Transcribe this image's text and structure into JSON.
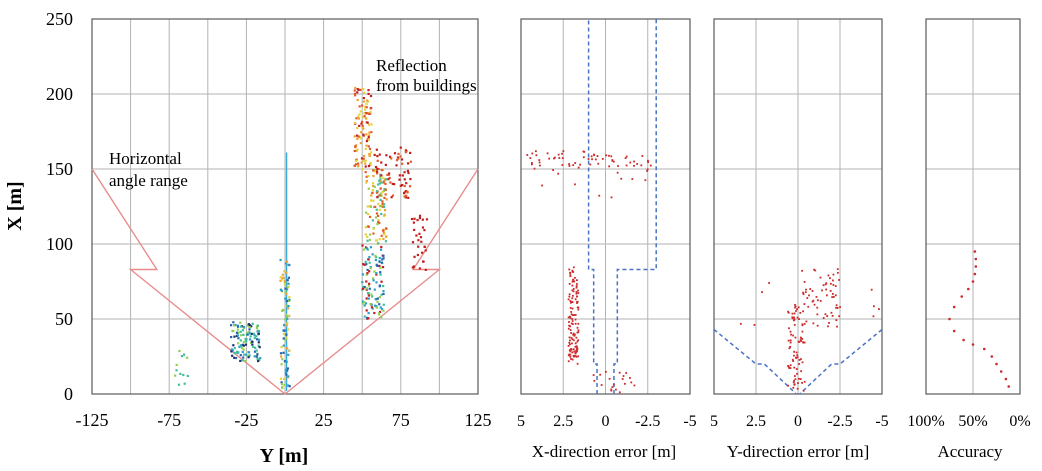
{
  "chart_data": [
    {
      "type": "scatter",
      "ylabel": "X [m]",
      "xlabel": "Y [m]",
      "xlim": [
        -125,
        125
      ],
      "ylim": [
        0,
        250
      ],
      "x_ticks": [
        "-125",
        "-75",
        "-25",
        "25",
        "75",
        "125"
      ],
      "x_grid": [
        -125,
        -100,
        -75,
        -50,
        -25,
        0,
        25,
        50,
        75,
        100,
        125
      ],
      "y_ticks": [
        "0",
        "50",
        "100",
        "150",
        "200",
        "250"
      ],
      "grid": true,
      "annotations": [
        {
          "text": [
            "Reflection",
            "from buildings"
          ],
          "x": 53,
          "y": 212
        },
        {
          "text": [
            "Horizontal",
            "angle range"
          ],
          "x": -118,
          "y": 150
        }
      ],
      "angle_range_line": {
        "color": "#e88d8d",
        "points": [
          [
            -125,
            150
          ],
          [
            -83,
            83
          ],
          [
            -100,
            83
          ],
          [
            0,
            0
          ],
          [
            100,
            83
          ],
          [
            83,
            83
          ],
          [
            125,
            150
          ]
        ]
      },
      "vertical_line": {
        "color": "#3aa8d8",
        "x": 1,
        "y": [
          2,
          161
        ]
      },
      "point_colors": [
        "#1a2f6e",
        "#2464b0",
        "#2aa0c8",
        "#3fbf9a",
        "#8fd14f",
        "#e6d23a",
        "#f0a030",
        "#e35a2a",
        "#c41d1d"
      ],
      "clusters": [
        {
          "x": [
            -35,
            -16
          ],
          "y": [
            22,
            48
          ],
          "n": 120,
          "colors": [
            0,
            1,
            2,
            3,
            4
          ]
        },
        {
          "x": [
            -3,
            3
          ],
          "y": [
            2,
            90
          ],
          "n": 90,
          "colors": [
            1,
            2,
            4,
            5,
            6
          ]
        },
        {
          "x": [
            45,
            56
          ],
          "y": [
            150,
            205
          ],
          "n": 110,
          "colors": [
            5,
            6,
            7,
            8
          ]
        },
        {
          "x": [
            52,
            66
          ],
          "y": [
            100,
            150
          ],
          "n": 110,
          "colors": [
            3,
            4,
            5,
            6,
            7
          ]
        },
        {
          "x": [
            50,
            64
          ],
          "y": [
            50,
            100
          ],
          "n": 110,
          "colors": [
            1,
            2,
            3,
            4,
            8
          ]
        },
        {
          "x": [
            57,
            82
          ],
          "y": [
            130,
            165
          ],
          "n": 70,
          "colors": [
            7,
            8
          ]
        },
        {
          "x": [
            82,
            92
          ],
          "y": [
            75,
            120
          ],
          "n": 30,
          "colors": [
            8
          ]
        },
        {
          "x": [
            -75,
            -62
          ],
          "y": [
            5,
            30
          ],
          "n": 12,
          "colors": [
            3,
            4
          ]
        }
      ]
    },
    {
      "type": "scatter",
      "xlabel": "X-direction error [m]",
      "xlim": [
        5,
        -5
      ],
      "ylim": [
        0,
        250
      ],
      "x_ticks": [
        "5",
        "2.5",
        "0",
        "-2.5",
        "-5"
      ],
      "grid": true,
      "point_color": "#cc2a2a",
      "bounds_color": "#4a73c4",
      "bounds": [
        [
          [
            -0.5,
            0
          ],
          [
            -0.5,
            20
          ],
          [
            -0.7,
            20
          ],
          [
            -0.7,
            83
          ],
          [
            -3,
            83
          ],
          [
            -3,
            250
          ]
        ],
        [
          [
            0.5,
            0
          ],
          [
            0.5,
            20
          ],
          [
            0.7,
            20
          ],
          [
            0.7,
            83
          ],
          [
            1,
            83
          ],
          [
            1,
            250
          ]
        ]
      ],
      "clusters": [
        {
          "x": [
            1.6,
            2.2
          ],
          "y": [
            20,
            85
          ],
          "n": 120
        },
        {
          "x": [
            4.7,
            -2.7
          ],
          "y": [
            150,
            162
          ],
          "n": 60
        },
        {
          "x": [
            4,
            -3
          ],
          "y": [
            130,
            150
          ],
          "n": 12
        },
        {
          "x": [
            0.8,
            -1.8
          ],
          "y": [
            0,
            15
          ],
          "n": 20
        }
      ]
    },
    {
      "type": "scatter",
      "xlabel": "Y-direction error [m]",
      "xlim": [
        5,
        -5
      ],
      "ylim": [
        0,
        250
      ],
      "x_ticks": [
        "5",
        "2.5",
        "0",
        "-2.5",
        "-5"
      ],
      "grid": true,
      "point_color": "#cc2a2a",
      "bounds_color": "#4a73c4",
      "bounds": [
        [
          [
            5,
            43
          ],
          [
            2.5,
            20
          ],
          [
            2,
            20
          ],
          [
            0.1,
            0
          ]
        ],
        [
          [
            -5,
            43
          ],
          [
            -2.5,
            20
          ],
          [
            -2,
            20
          ],
          [
            -0.1,
            0
          ]
        ]
      ],
      "clusters": [
        {
          "x": [
            0.6,
            -0.4
          ],
          "y": [
            2,
            60
          ],
          "n": 80
        },
        {
          "x": [
            -0.2,
            -2.5
          ],
          "y": [
            45,
            85
          ],
          "n": 60
        },
        {
          "x": [
            -2,
            -5
          ],
          "y": [
            50,
            70
          ],
          "n": 6
        },
        {
          "x": [
            3.5,
            1.5
          ],
          "y": [
            45,
            90
          ],
          "n": 4
        }
      ]
    },
    {
      "type": "line",
      "xlabel": "Accuracy",
      "xlim": [
        1,
        0
      ],
      "ylim": [
        0,
        250
      ],
      "x_ticks": [
        "100%",
        "50%",
        "0%"
      ],
      "grid": true,
      "point_color": "#cc2a2a",
      "x": [
        0.12,
        0.15,
        0.2,
        0.25,
        0.3,
        0.38,
        0.5,
        0.6,
        0.7,
        0.75,
        0.7,
        0.62,
        0.55,
        0.5,
        0.48,
        0.47,
        0.47,
        0.48
      ],
      "y": [
        5,
        10,
        15,
        20,
        25,
        30,
        33,
        36,
        42,
        50,
        58,
        65,
        70,
        75,
        80,
        85,
        90,
        95
      ]
    }
  ]
}
